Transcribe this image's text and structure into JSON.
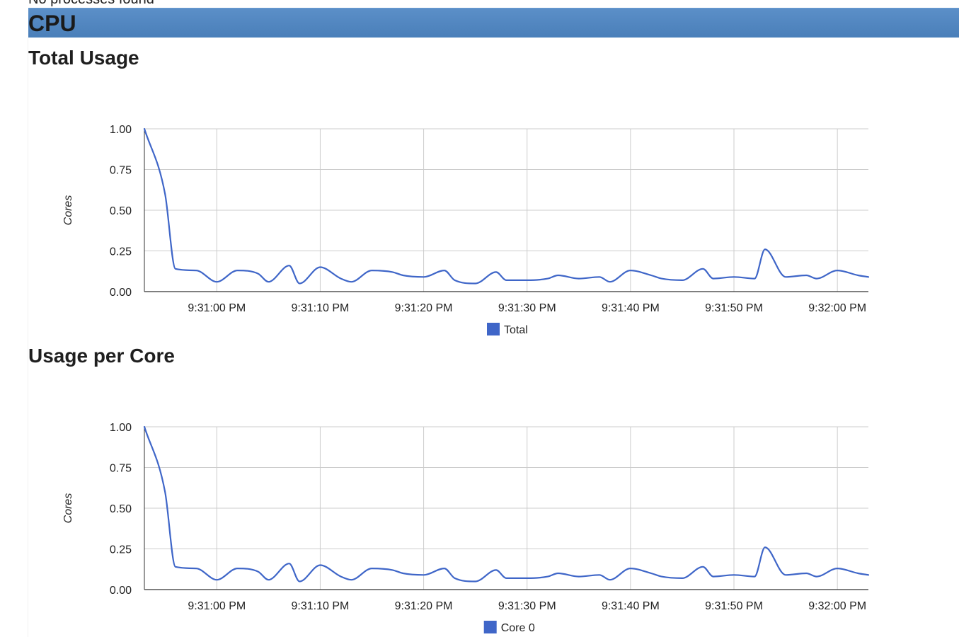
{
  "page": {
    "cut_text": "No processes found"
  },
  "section": {
    "title": "CPU"
  },
  "colors": {
    "header": "#4a7fb9",
    "series": "#3f66c8",
    "grid": "#cccccc",
    "axis": "#333333"
  },
  "charts": [
    {
      "heading": "Total Usage",
      "ylabel": "Cores",
      "legend": "Total"
    },
    {
      "heading": "Usage per Core",
      "ylabel": "Cores",
      "legend": "Core 0"
    }
  ],
  "chart_data": [
    {
      "type": "line",
      "ylabel": "Cores",
      "ylim": [
        0,
        1
      ],
      "yticks": [
        "0.00",
        "0.25",
        "0.50",
        "0.75",
        "1.00"
      ],
      "xlim": [
        "9:30:53 PM",
        "9:32:03 PM"
      ],
      "xticks": [
        "9:31:00 PM",
        "9:31:10 PM",
        "9:31:20 PM",
        "9:31:30 PM",
        "9:31:40 PM",
        "9:31:50 PM",
        "9:32:00 PM"
      ],
      "grid": true,
      "legend_position": "bottom",
      "series": [
        {
          "name": "Total",
          "x": [
            "9:30:53 PM",
            "9:30:55 PM",
            "9:30:56 PM",
            "9:30:58 PM",
            "9:31:00 PM",
            "9:31:02 PM",
            "9:31:04 PM",
            "9:31:05 PM",
            "9:31:07 PM",
            "9:31:08 PM",
            "9:31:10 PM",
            "9:31:12 PM",
            "9:31:13 PM",
            "9:31:15 PM",
            "9:31:17 PM",
            "9:31:18 PM",
            "9:31:20 PM",
            "9:31:22 PM",
            "9:31:23 PM",
            "9:31:25 PM",
            "9:31:27 PM",
            "9:31:28 PM",
            "9:31:30 PM",
            "9:31:32 PM",
            "9:31:33 PM",
            "9:31:35 PM",
            "9:31:37 PM",
            "9:31:38 PM",
            "9:31:40 PM",
            "9:31:42 PM",
            "9:31:43 PM",
            "9:31:45 PM",
            "9:31:47 PM",
            "9:31:48 PM",
            "9:31:50 PM",
            "9:31:52 PM",
            "9:31:53 PM",
            "9:31:55 PM",
            "9:31:57 PM",
            "9:31:58 PM",
            "9:32:00 PM",
            "9:32:02 PM",
            "9:32:03 PM"
          ],
          "values": [
            1.0,
            0.6,
            0.14,
            0.13,
            0.06,
            0.13,
            0.11,
            0.06,
            0.16,
            0.05,
            0.15,
            0.08,
            0.06,
            0.13,
            0.12,
            0.1,
            0.09,
            0.13,
            0.07,
            0.05,
            0.12,
            0.07,
            0.07,
            0.08,
            0.1,
            0.08,
            0.09,
            0.06,
            0.13,
            0.1,
            0.08,
            0.07,
            0.14,
            0.08,
            0.09,
            0.08,
            0.26,
            0.09,
            0.1,
            0.08,
            0.13,
            0.1,
            0.09
          ]
        }
      ]
    },
    {
      "type": "line",
      "ylabel": "Cores",
      "ylim": [
        0,
        1
      ],
      "yticks": [
        "0.00",
        "0.25",
        "0.50",
        "0.75",
        "1.00"
      ],
      "xlim": [
        "9:30:53 PM",
        "9:32:03 PM"
      ],
      "xticks": [
        "9:31:00 PM",
        "9:31:10 PM",
        "9:31:20 PM",
        "9:31:30 PM",
        "9:31:40 PM",
        "9:31:50 PM",
        "9:32:00 PM"
      ],
      "grid": true,
      "legend_position": "bottom",
      "series": [
        {
          "name": "Core 0",
          "x": [
            "9:30:53 PM",
            "9:30:55 PM",
            "9:30:56 PM",
            "9:30:58 PM",
            "9:31:00 PM",
            "9:31:02 PM",
            "9:31:04 PM",
            "9:31:05 PM",
            "9:31:07 PM",
            "9:31:08 PM",
            "9:31:10 PM",
            "9:31:12 PM",
            "9:31:13 PM",
            "9:31:15 PM",
            "9:31:17 PM",
            "9:31:18 PM",
            "9:31:20 PM",
            "9:31:22 PM",
            "9:31:23 PM",
            "9:31:25 PM",
            "9:31:27 PM",
            "9:31:28 PM",
            "9:31:30 PM",
            "9:31:32 PM",
            "9:31:33 PM",
            "9:31:35 PM",
            "9:31:37 PM",
            "9:31:38 PM",
            "9:31:40 PM",
            "9:31:42 PM",
            "9:31:43 PM",
            "9:31:45 PM",
            "9:31:47 PM",
            "9:31:48 PM",
            "9:31:50 PM",
            "9:31:52 PM",
            "9:31:53 PM",
            "9:31:55 PM",
            "9:31:57 PM",
            "9:31:58 PM",
            "9:32:00 PM",
            "9:32:02 PM",
            "9:32:03 PM"
          ],
          "values": [
            1.0,
            0.6,
            0.14,
            0.13,
            0.06,
            0.13,
            0.11,
            0.06,
            0.16,
            0.05,
            0.15,
            0.08,
            0.06,
            0.13,
            0.12,
            0.1,
            0.09,
            0.13,
            0.07,
            0.05,
            0.12,
            0.07,
            0.07,
            0.08,
            0.1,
            0.08,
            0.09,
            0.06,
            0.13,
            0.1,
            0.08,
            0.07,
            0.14,
            0.08,
            0.09,
            0.08,
            0.26,
            0.09,
            0.1,
            0.08,
            0.13,
            0.1,
            0.09
          ]
        }
      ]
    }
  ]
}
